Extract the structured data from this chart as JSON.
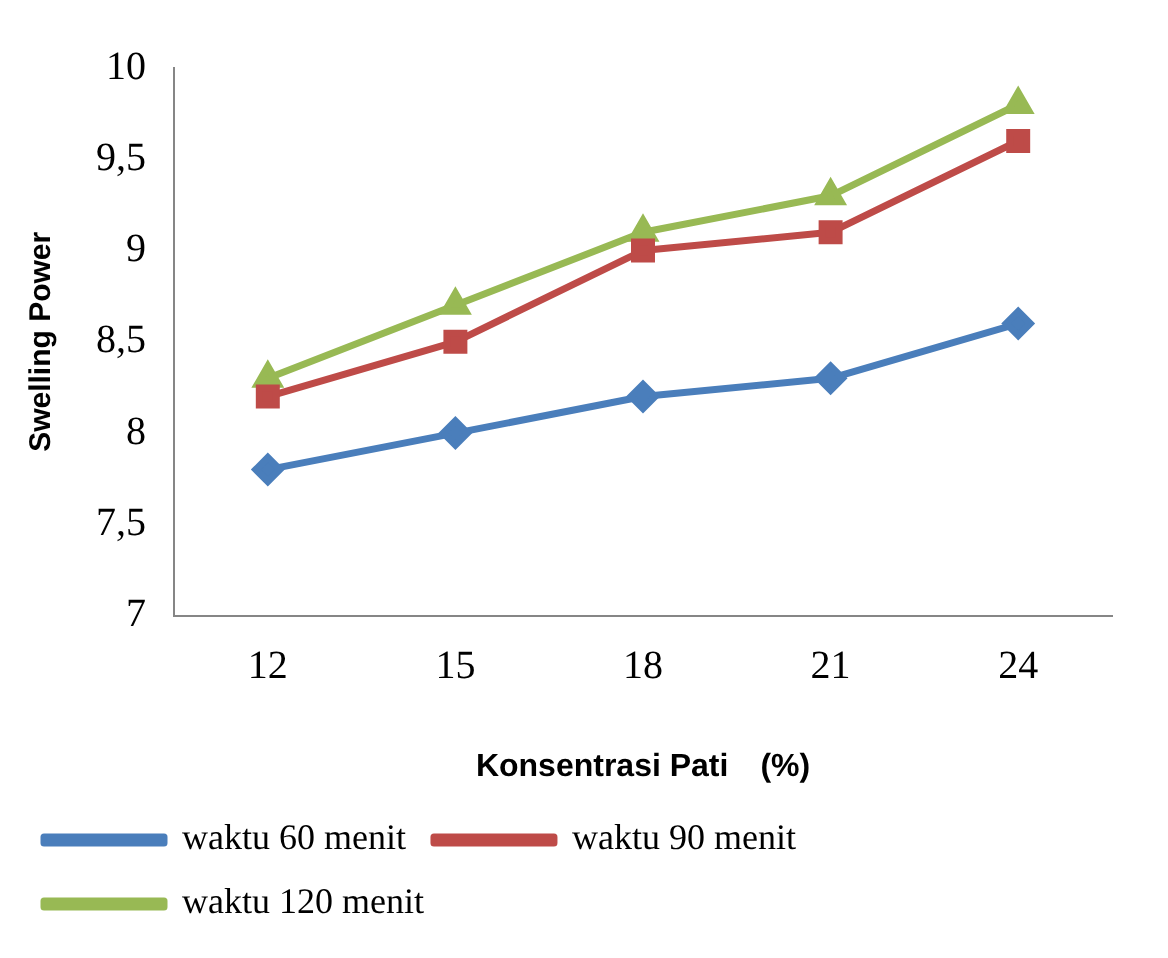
{
  "chart_data": {
    "type": "line",
    "xlabel": "Konsentrasi Pati　(%)",
    "ylabel": "Swelling Power",
    "categories": [
      "12",
      "15",
      "18",
      "21",
      "24"
    ],
    "series": [
      {
        "name": "waktu 60 menit",
        "color": "#4a7ebb",
        "marker": "diamond",
        "values": [
          7.8,
          8.0,
          8.2,
          8.3,
          8.6
        ]
      },
      {
        "name": "waktu 90 menit",
        "color": "#be4b48",
        "marker": "square",
        "values": [
          8.2,
          8.5,
          9.0,
          9.1,
          9.6
        ]
      },
      {
        "name": "waktu 120 menit",
        "color": "#98b954",
        "marker": "triangle",
        "values": [
          8.3,
          8.7,
          9.1,
          9.3,
          9.8
        ]
      }
    ],
    "ylim": [
      7,
      10
    ],
    "yticks": [
      7,
      {
        "value": 7.5,
        "label": "7,5"
      },
      8,
      {
        "value": 8.5,
        "label": "8,5"
      },
      9,
      {
        "value": 9.5,
        "label": "9,5"
      },
      10
    ],
    "grid": false,
    "legend": "bottom",
    "line_style": "solid"
  }
}
